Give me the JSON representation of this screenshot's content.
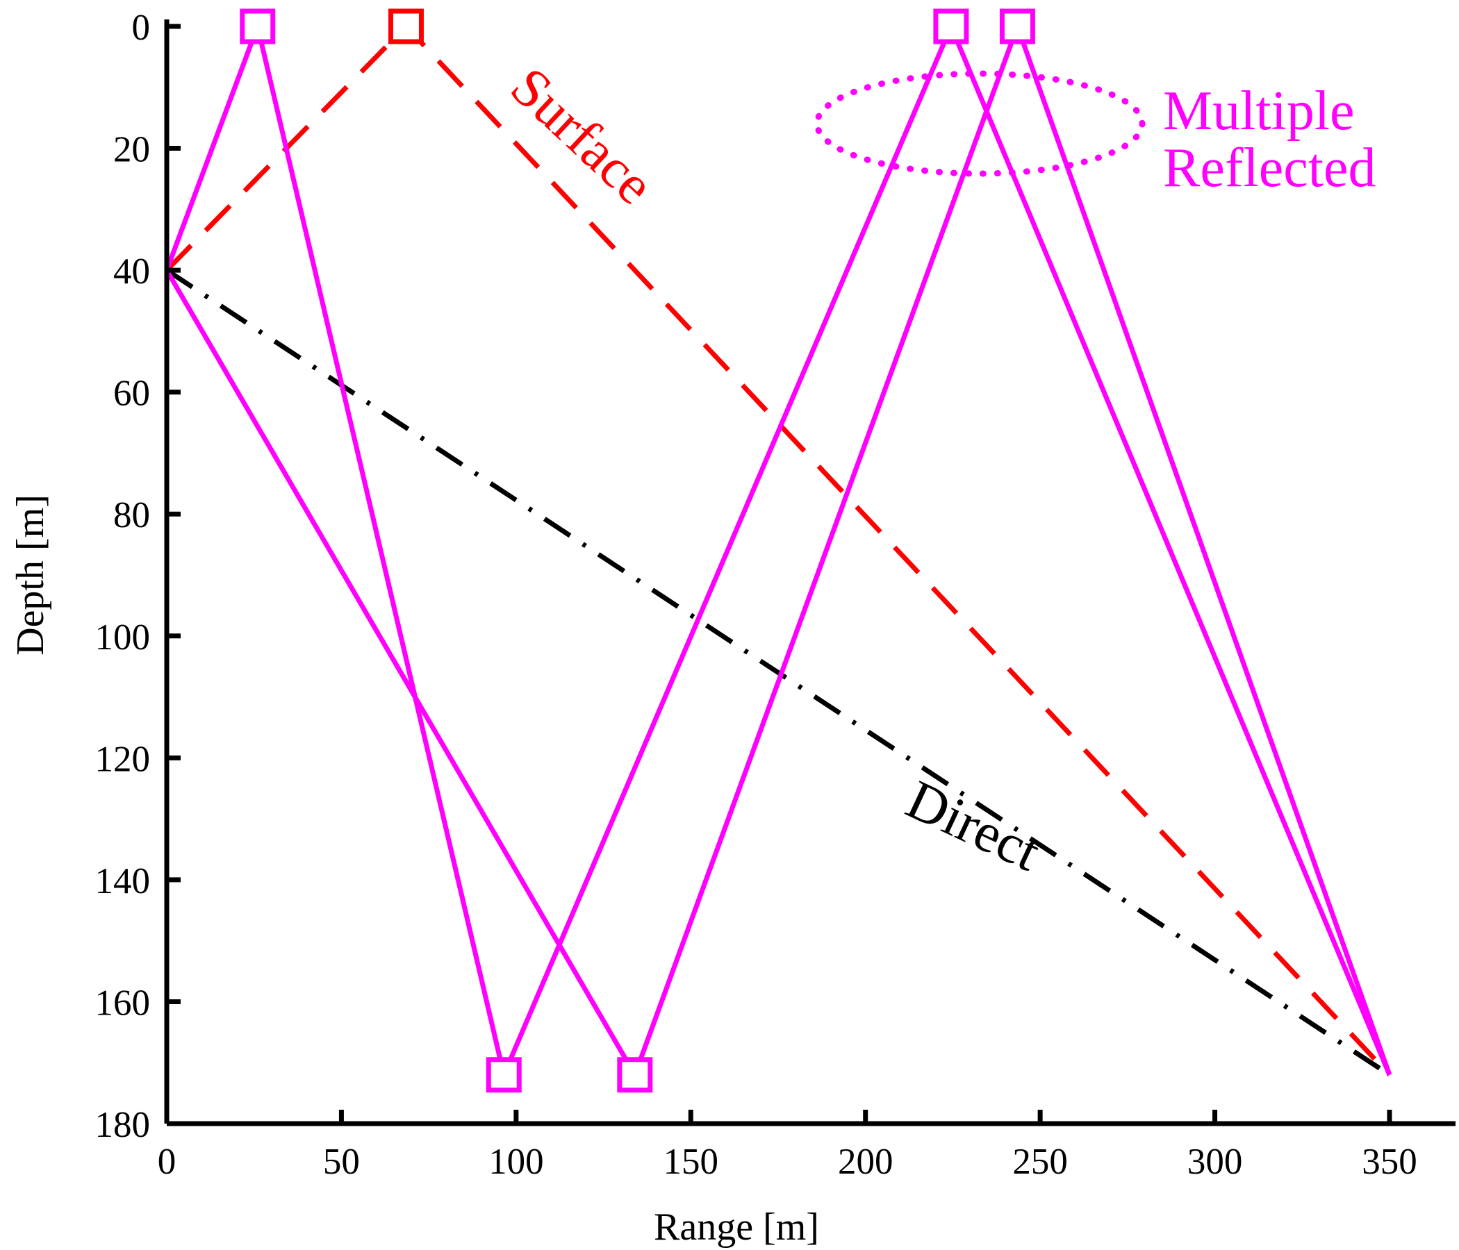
{
  "chart_data": {
    "type": "line",
    "xlabel": "Range [m]",
    "ylabel": "Depth [m]",
    "xlim": [
      0,
      350
    ],
    "ylim": [
      0,
      180
    ],
    "y_inverted": true,
    "xticks": [
      "0",
      "50",
      "100",
      "150",
      "200",
      "250",
      "300",
      "350"
    ],
    "yticks": [
      "0",
      "20",
      "40",
      "60",
      "80",
      "100",
      "120",
      "140",
      "160",
      "180"
    ],
    "grid": false,
    "colors": {
      "direct": "#000000",
      "surface": "#ff0000",
      "multiple": "#ff00ff"
    },
    "series": [
      {
        "name": "Direct",
        "style": "dash-dot",
        "color": "#000000",
        "x": [
          0,
          350
        ],
        "y": [
          40,
          172
        ]
      },
      {
        "name": "Surface",
        "style": "dashed",
        "color": "#ff0000",
        "x": [
          0,
          68.5,
          350
        ],
        "y": [
          40,
          0,
          172
        ],
        "markers": [
          {
            "x": 68.5,
            "y": 0
          }
        ]
      },
      {
        "style": "solid",
        "color": "#ff00ff",
        "x": [
          0,
          26,
          96.5,
          224.5,
          350
        ],
        "y": [
          40,
          0,
          172,
          0,
          172
        ],
        "markers": [
          {
            "x": 26,
            "y": 0
          },
          {
            "x": 96.5,
            "y": 172
          },
          {
            "x": 224.5,
            "y": 0
          }
        ]
      },
      {
        "style": "solid",
        "color": "#ff00ff",
        "x": [
          0,
          134,
          243.5,
          350
        ],
        "y": [
          40,
          172,
          0,
          172
        ],
        "markers": [
          {
            "x": 134,
            "y": 172
          },
          {
            "x": 243.5,
            "y": 0
          }
        ]
      }
    ],
    "annotations": {
      "surface": "Surface",
      "direct": "Direct",
      "multiple_line1": "Multiple",
      "multiple_line2": "Reflected"
    }
  }
}
